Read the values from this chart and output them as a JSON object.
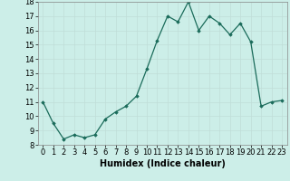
{
  "x": [
    0,
    1,
    2,
    3,
    4,
    5,
    6,
    7,
    8,
    9,
    10,
    11,
    12,
    13,
    14,
    15,
    16,
    17,
    18,
    19,
    20,
    21,
    22,
    23
  ],
  "y": [
    11.0,
    9.5,
    8.4,
    8.7,
    8.5,
    8.7,
    9.8,
    10.3,
    10.7,
    11.4,
    13.3,
    15.3,
    17.0,
    16.6,
    18.0,
    16.0,
    17.0,
    16.5,
    15.7,
    16.5,
    15.2,
    10.7,
    11.0,
    11.1
  ],
  "xlabel": "Humidex (Indice chaleur)",
  "ylim": [
    8,
    18
  ],
  "xlim_min": -0.5,
  "xlim_max": 23.5,
  "yticks": [
    8,
    9,
    10,
    11,
    12,
    13,
    14,
    15,
    16,
    17,
    18
  ],
  "xticks": [
    0,
    1,
    2,
    3,
    4,
    5,
    6,
    7,
    8,
    9,
    10,
    11,
    12,
    13,
    14,
    15,
    16,
    17,
    18,
    19,
    20,
    21,
    22,
    23
  ],
  "line_color": "#1a6b5a",
  "marker": "D",
  "marker_size": 1.8,
  "bg_color": "#cceee8",
  "grid_color": "#c0ddd8",
  "xlabel_fontsize": 7,
  "tick_fontsize": 6,
  "line_width": 0.9
}
